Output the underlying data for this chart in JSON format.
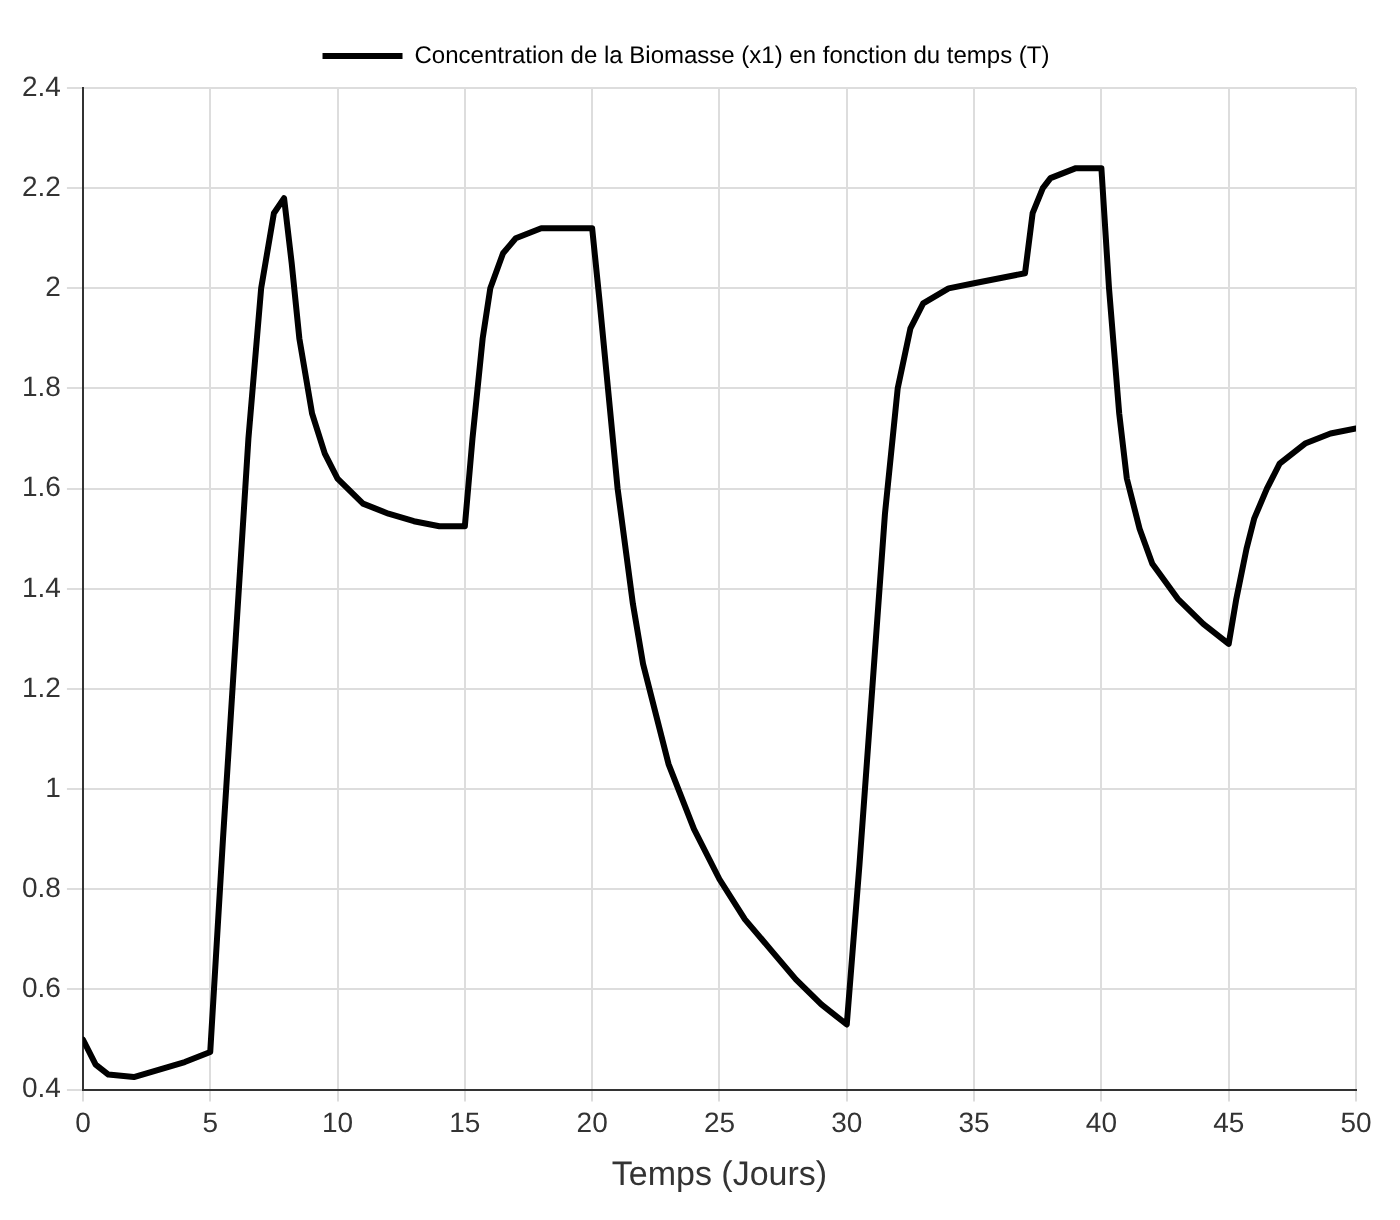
{
  "chart_data": {
    "type": "line",
    "xlabel": "Temps (Jours)",
    "x": [
      0,
      0.5,
      1,
      2,
      3,
      4,
      5,
      5.5,
      6,
      6.5,
      7,
      7.5,
      7.9,
      8.2,
      8.5,
      9,
      9.5,
      10,
      11,
      12,
      13,
      14,
      15,
      15.3,
      15.7,
      16,
      16.5,
      17,
      18,
      20,
      20.3,
      21,
      21.6,
      22,
      23,
      24,
      25,
      26,
      27,
      28,
      29,
      30,
      30.5,
      31,
      31.5,
      32,
      32.5,
      33,
      34,
      35,
      36,
      37,
      37.3,
      37.7,
      38,
      39,
      40,
      40.3,
      40.7,
      41,
      41.5,
      42,
      43,
      44,
      45,
      45.3,
      45.7,
      46,
      46.5,
      47,
      48,
      49,
      50
    ],
    "series": [
      {
        "name": "Concentration de la Biomasse (x1) en fonction du temps (T)",
        "color": "#000000",
        "values": [
          0.5,
          0.45,
          0.43,
          0.425,
          0.44,
          0.455,
          0.475,
          0.9,
          1.3,
          1.7,
          2.0,
          2.15,
          2.18,
          2.05,
          1.9,
          1.75,
          1.67,
          1.62,
          1.57,
          1.55,
          1.535,
          1.525,
          1.525,
          1.7,
          1.9,
          2.0,
          2.07,
          2.1,
          2.12,
          2.12,
          1.97,
          1.6,
          1.37,
          1.25,
          1.05,
          0.92,
          0.82,
          0.74,
          0.68,
          0.62,
          0.57,
          0.53,
          0.85,
          1.2,
          1.55,
          1.8,
          1.92,
          1.97,
          2.0,
          2.01,
          2.02,
          2.03,
          2.15,
          2.2,
          2.22,
          2.24,
          2.24,
          2.0,
          1.75,
          1.62,
          1.52,
          1.45,
          1.38,
          1.33,
          1.29,
          1.38,
          1.48,
          1.54,
          1.6,
          1.65,
          1.69,
          1.71,
          1.72
        ]
      }
    ],
    "xlim": [
      0,
      50
    ],
    "xticks": [
      0,
      5,
      10,
      15,
      20,
      25,
      30,
      35,
      40,
      45,
      50
    ],
    "ylim": [
      0.4,
      2.4
    ],
    "yticks": [
      0.4,
      0.6,
      0.8,
      1,
      1.2,
      1.4,
      1.6,
      1.8,
      2,
      2.2,
      2.4
    ],
    "grid": true,
    "legend": "top",
    "marker": "none",
    "line_style": "solid"
  }
}
